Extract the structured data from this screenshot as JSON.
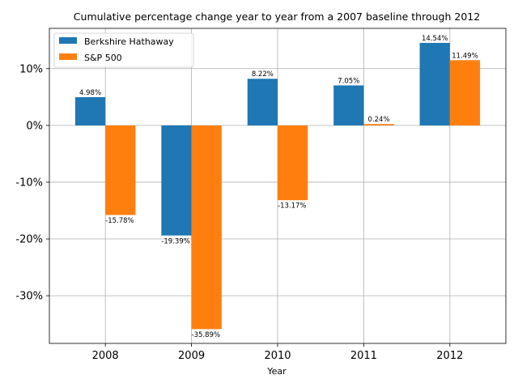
{
  "chart_data": {
    "type": "bar",
    "title": "Cumulative percentage change year to year from a 2007 baseline through 2012",
    "xlabel": "Year",
    "ylabel": "",
    "categories": [
      "2008",
      "2009",
      "2010",
      "2011",
      "2012"
    ],
    "series": [
      {
        "name": "Berkshire Hathaway",
        "color": "#1f77b4",
        "values": [
          4.98,
          -19.39,
          8.22,
          7.05,
          14.54
        ],
        "labels": [
          "4.98%",
          "-19.39%",
          "8.22%",
          "7.05%",
          "14.54%"
        ]
      },
      {
        "name": "S&P 500",
        "color": "#ff7f0e",
        "values": [
          -15.78,
          -35.89,
          -13.17,
          0.24,
          11.49
        ],
        "labels": [
          "-15.78%",
          "-35.89%",
          "-13.17%",
          "0.24%",
          "11.49%"
        ]
      }
    ],
    "ylim": [
      -38.4,
      17.1
    ],
    "yticks": [
      10,
      0,
      -10,
      -20,
      -30
    ],
    "ytick_labels": [
      "10%",
      "0%",
      "-10%",
      "-20%",
      "-30%"
    ],
    "grid": true,
    "legend_position": "top-left"
  }
}
